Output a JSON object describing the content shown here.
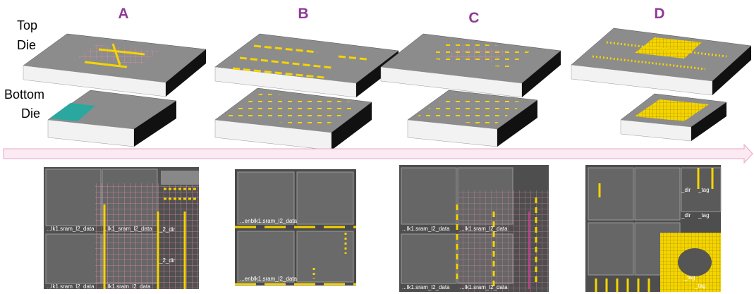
{
  "columns": [
    "A",
    "B",
    "C",
    "D"
  ],
  "top_die": [
    "Top",
    "Die"
  ],
  "bottom_die": [
    "Bottom",
    "Die"
  ],
  "panels": [
    {
      "labels": [
        "...lk1.sram_l2_data",
        "...lk1_sram_l2_data",
        "_2_dir",
        "_2_dir",
        "...lk1.sram_l2_data",
        "...lk1.sram_l2_data"
      ]
    },
    {
      "labels": [
        "...enblk1.sram_l2_data",
        "...enblk1.sram_l2_data"
      ]
    },
    {
      "labels": [
        "...lk1.sram_l2_data",
        "...lk1.sram_l2_data",
        "...lk1.sram_l2_data",
        "...lk1.sram_l2_data"
      ]
    },
    {
      "labels": [
        "_dir",
        "_tag",
        "_dir",
        "_tag",
        "_tag",
        "_tag"
      ]
    }
  ]
}
